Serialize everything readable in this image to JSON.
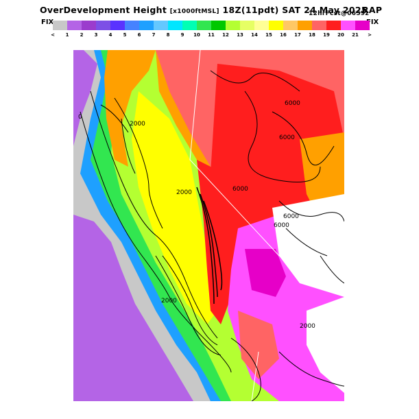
{
  "header": {
    "title": "OverDevelopment Height",
    "units": "[x1000ftMSL]",
    "valid_time": "18Z(11pdt) SAT 24 May 2025",
    "forecast": "12hrFcst@0659z",
    "model": "RAP"
  },
  "colorbar": {
    "left_label": "FIX",
    "right_label": "FIX",
    "colors": [
      "#c8c8c8",
      "#b464e6",
      "#9b3ccd",
      "#7d50e6",
      "#5a32ff",
      "#4682ff",
      "#1ea0ff",
      "#64c8ff",
      "#00e6ff",
      "#00ffb4",
      "#32e650",
      "#00c800",
      "#b4ff32",
      "#e6ff64",
      "#ffff96",
      "#ffff00",
      "#ffc864",
      "#ffa000",
      "#ff6464",
      "#ff1e1e",
      "#ff50ff",
      "#e600c8"
    ],
    "ticks": [
      "<",
      "1",
      "2",
      "3",
      "4",
      "5",
      "6",
      "7",
      "8",
      "9",
      "10",
      "11",
      "12",
      "13",
      "14",
      "15",
      "16",
      "17",
      "18",
      "19",
      "20",
      "21",
      ">"
    ]
  },
  "map": {
    "contour_labels": [
      "6000",
      "6000",
      "6000",
      "6000",
      "6000",
      "2000",
      "2000",
      "2000",
      "2000",
      "0"
    ],
    "legend_colors": {
      "ocean": "#c8c8c8",
      "coast": "#b464e6",
      "valley_yellow": "#ffff00",
      "valley_green": "#b4ff32",
      "mountain_red": "#ff1e1e",
      "mountain_salmon": "#ff6464",
      "desert_magenta": "#ff50ff"
    }
  }
}
